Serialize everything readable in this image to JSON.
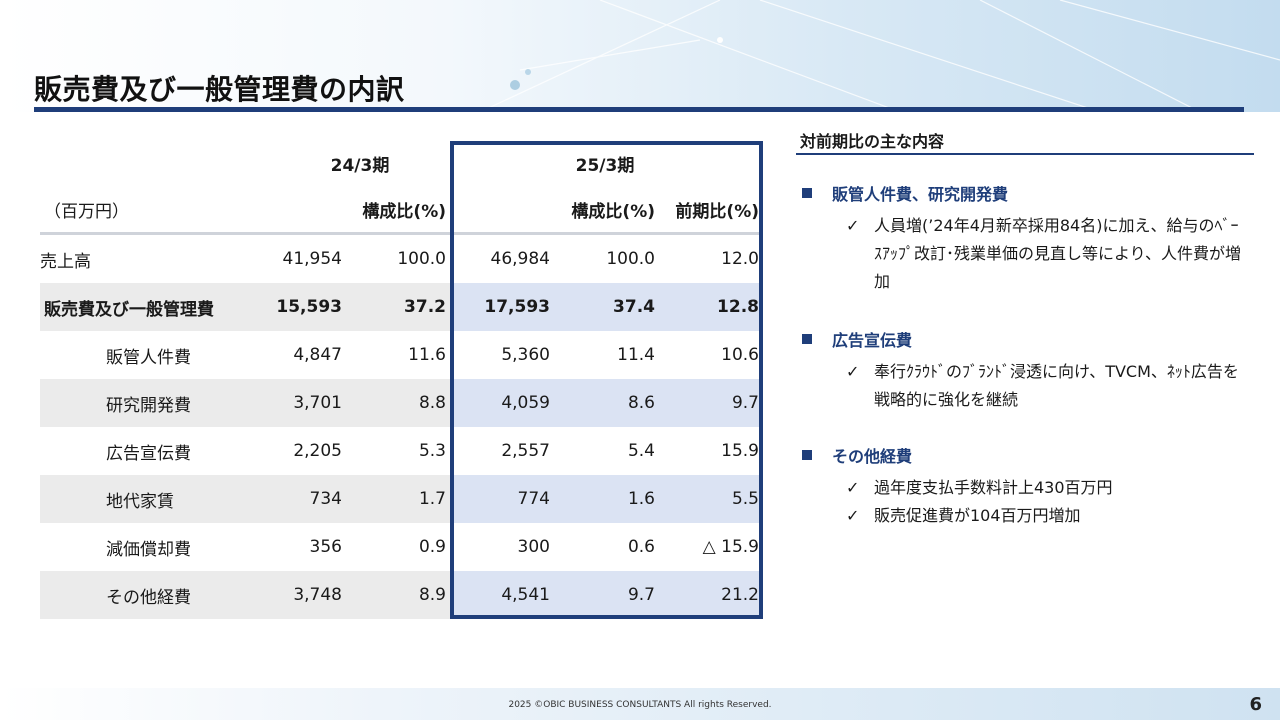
{
  "title": "販売費及び一般管理費の内訳",
  "table": {
    "periods": [
      "24/3期",
      "25/3期"
    ],
    "unit": "（百万円）",
    "col_headers": {
      "ratio_24": "構成比(%)",
      "ratio_25": "構成比(%)",
      "yoy": "前期比(%)"
    },
    "rows": [
      {
        "label": "売上高",
        "v24": "41,954",
        "r24": "100.0",
        "v25": "46,984",
        "r25": "100.0",
        "yoy": "12.0"
      },
      {
        "label": "販売費及び一般管理費",
        "v24": "15,593",
        "r24": "37.2",
        "v25": "17,593",
        "r25": "37.4",
        "yoy": "12.8"
      },
      {
        "label": "販管人件費",
        "v24": "4,847",
        "r24": "11.6",
        "v25": "5,360",
        "r25": "11.4",
        "yoy": "10.6"
      },
      {
        "label": "研究開発費",
        "v24": "3,701",
        "r24": "8.8",
        "v25": "4,059",
        "r25": "8.6",
        "yoy": "9.7"
      },
      {
        "label": "広告宣伝費",
        "v24": "2,205",
        "r24": "5.3",
        "v25": "2,557",
        "r25": "5.4",
        "yoy": "15.9"
      },
      {
        "label": "地代家賃",
        "v24": "734",
        "r24": "1.7",
        "v25": "774",
        "r25": "1.6",
        "yoy": "5.5"
      },
      {
        "label": "減価償却費",
        "v24": "356",
        "r24": "0.9",
        "v25": "300",
        "r25": "0.6",
        "yoy": "△ 15.9"
      },
      {
        "label": "その他経費",
        "v24": "3,748",
        "r24": "8.9",
        "v25": "4,541",
        "r25": "9.7",
        "yoy": "21.2"
      }
    ]
  },
  "panel": {
    "title": "対前期比の主な内容",
    "sections": [
      {
        "heading": "販管人件費、研究開発費",
        "items": [
          "人員増(’24年4月新卒採用84名)に加え、給与のﾍﾞｰｽｱｯﾌﾟ改訂･残業単価の見直し等により、人件費が増加"
        ]
      },
      {
        "heading": "広告宣伝費",
        "items": [
          "奉行ｸﾗｳﾄﾞのﾌﾞﾗﾝﾄﾞ浸透に向け、TVCM、ﾈｯﾄ広告を戦略的に強化を継続"
        ]
      },
      {
        "heading": "その他経費",
        "items": [
          "過年度支払手数料計上430百万円",
          "販売促進費が104百万円増加"
        ]
      }
    ],
    "check_mark": "✓"
  },
  "footer": {
    "copyright": "2025 ©OBIC BUSINESS CONSULTANTS All rights Reserved.",
    "page": "6"
  },
  "colors": {
    "accent": "#1f3e7a",
    "highlight": "#dbe3f3",
    "shade": "#ebebeb"
  }
}
